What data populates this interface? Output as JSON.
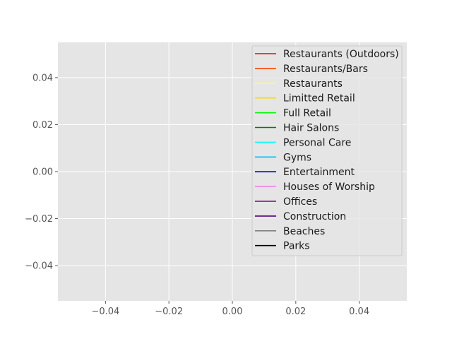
{
  "chart_data": {
    "type": "line",
    "style": "ggplot",
    "title": "",
    "xlabel": "",
    "ylabel": "",
    "xlim": [
      -0.055,
      0.055
    ],
    "ylim": [
      -0.055,
      0.055
    ],
    "x_ticks": [
      -0.04,
      -0.02,
      0.0,
      0.02,
      0.04
    ],
    "x_tick_labels": [
      "−0.04",
      "−0.02",
      "0.00",
      "0.02",
      "0.04"
    ],
    "y_ticks": [
      -0.04,
      -0.02,
      0.0,
      0.02,
      0.04
    ],
    "y_tick_labels": [
      "−0.04",
      "−0.02",
      "0.00",
      "0.02",
      "0.04"
    ],
    "grid": true,
    "legend_position": "top-right",
    "series": [
      {
        "name": "Restaurants (Outdoors)",
        "color": "#ff0000",
        "values": []
      },
      {
        "name": "Restaurants/Bars",
        "color": "#ff4500",
        "values": []
      },
      {
        "name": "Restaurants",
        "color": "#ffff66",
        "values": []
      },
      {
        "name": "Limitted Retail",
        "color": "#ffd700",
        "values": []
      },
      {
        "name": "Full Retail",
        "color": "#00ff00",
        "values": []
      },
      {
        "name": "Hair Salons",
        "color": "#008000",
        "values": []
      },
      {
        "name": "Personal Care",
        "color": "#00ffff",
        "values": []
      },
      {
        "name": "Gyms",
        "color": "#00bfff",
        "values": []
      },
      {
        "name": "Entertainment",
        "color": "#0000cd",
        "values": []
      },
      {
        "name": "Houses of Worship",
        "color": "#ee82ee",
        "values": []
      },
      {
        "name": "Offices",
        "color": "#800080",
        "values": []
      },
      {
        "name": "Construction",
        "color": "#4b0082",
        "values": []
      },
      {
        "name": "Beaches",
        "color": "#808080",
        "values": []
      },
      {
        "name": "Parks",
        "color": "#000000",
        "values": []
      }
    ]
  }
}
